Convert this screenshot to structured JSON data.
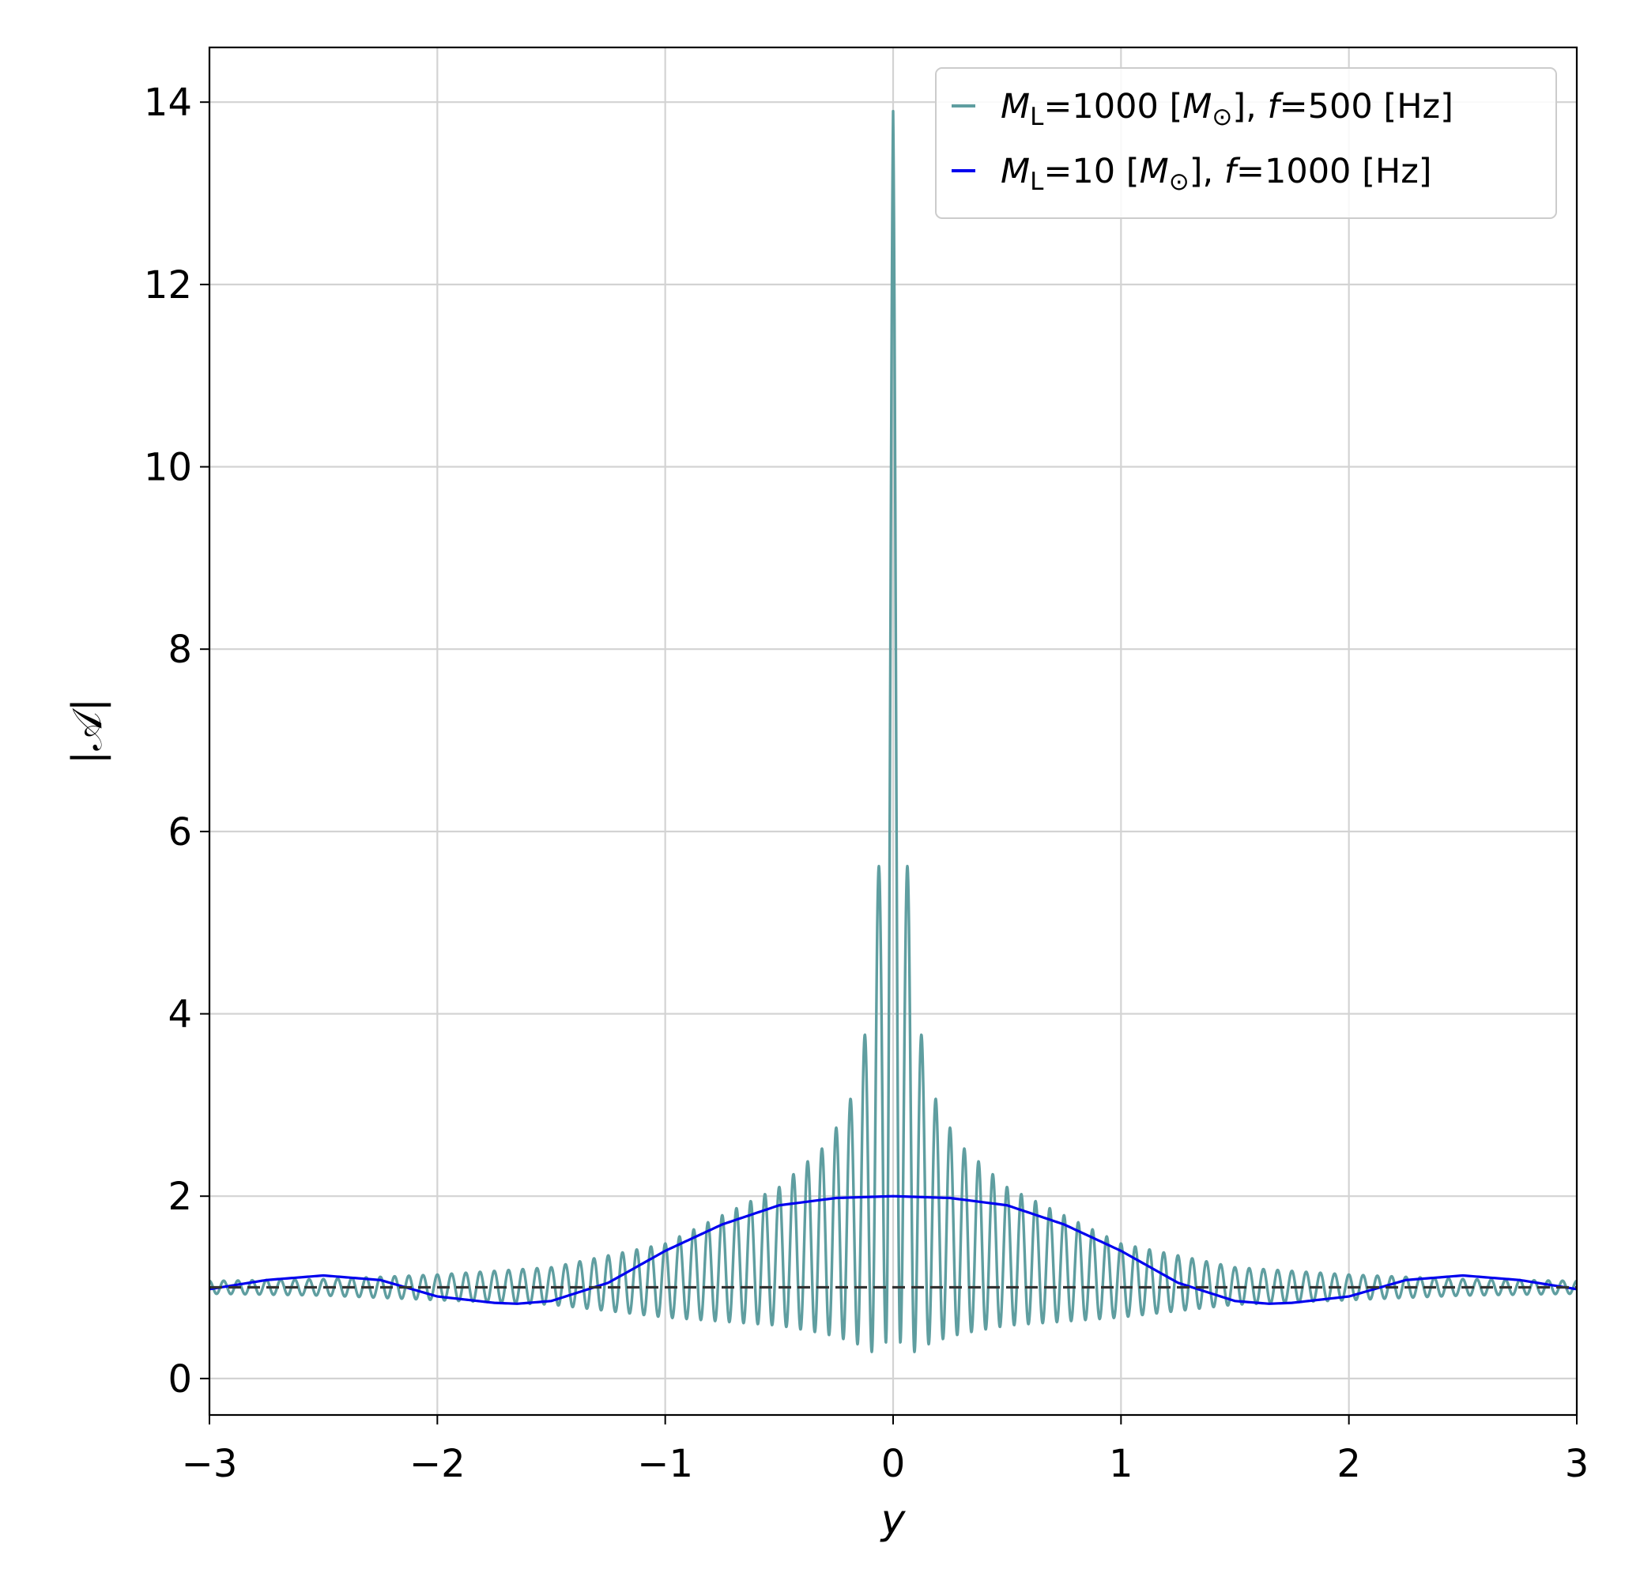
{
  "chart_data": {
    "type": "line",
    "title": "",
    "xlabel": "y",
    "ylabel": "|𝒜|",
    "xlim": [
      -3,
      3
    ],
    "ylim": [
      -0.4,
      14.6
    ],
    "xticks": [
      -3,
      -2,
      -1,
      0,
      1,
      2,
      3
    ],
    "xtick_labels": [
      "−3",
      "−2",
      "−1",
      "0",
      "1",
      "2",
      "3"
    ],
    "yticks": [
      0,
      2,
      4,
      6,
      8,
      10,
      12,
      14
    ],
    "ytick_labels": [
      "0",
      "2",
      "4",
      "6",
      "8",
      "10",
      "12",
      "14"
    ],
    "grid": true,
    "legend_position": "top-right",
    "series": [
      {
        "name": "M_L=1000 [M_⊙], f=500 [Hz]",
        "legend": {
          "m": "M",
          "sub": "L",
          "mid": "=1000 [",
          "m2": "M",
          "sun": "⊙",
          "close": "], ",
          "f": "f",
          "tail": "=500 [Hz]"
        },
        "color": "#5f9ea0",
        "style": "solid",
        "x": [
          -3,
          -2.5,
          -2,
          -1.5,
          -1,
          -0.5,
          -0.3,
          -0.2,
          -0.14,
          -0.1,
          -0.07,
          -0.04,
          0,
          0.04,
          0.07,
          0.1,
          0.14,
          0.2,
          0.3,
          0.5,
          1,
          1.5,
          2,
          2.5,
          3
        ],
        "peak_envelope": [
          1.07,
          1.09,
          1.14,
          1.22,
          1.48,
          2.1,
          2.55,
          2.95,
          3.5,
          4.2,
          5.62,
          5.62,
          13.9,
          5.62,
          5.62,
          4.2,
          3.5,
          2.95,
          2.55,
          2.1,
          1.48,
          1.22,
          1.14,
          1.09,
          1.07
        ],
        "trough_envelope": [
          0.93,
          0.91,
          0.86,
          0.81,
          0.67,
          0.58,
          0.49,
          0.42,
          0.36,
          0.3,
          0.26,
          0.26,
          0.88,
          0.26,
          0.26,
          0.3,
          0.36,
          0.42,
          0.49,
          0.58,
          0.67,
          0.81,
          0.86,
          0.91,
          0.93
        ]
      },
      {
        "name": "M_L=10 [M_⊙], f=1000 [Hz]",
        "legend": {
          "m": "M",
          "sub": "L",
          "mid": "=10 [",
          "m2": "M",
          "sun": "⊙",
          "close": "], ",
          "f": "f",
          "tail": "=1000 [Hz]"
        },
        "color": "#0000ee",
        "style": "solid",
        "x": [
          -3,
          -2.75,
          -2.5,
          -2.25,
          -2,
          -1.75,
          -1.65,
          -1.5,
          -1.25,
          -1,
          -0.75,
          -0.5,
          -0.25,
          0,
          0.25,
          0.5,
          0.75,
          1,
          1.25,
          1.5,
          1.65,
          1.75,
          2,
          2.25,
          2.5,
          2.75,
          3
        ],
        "y": [
          0.98,
          1.08,
          1.13,
          1.08,
          0.9,
          0.83,
          0.82,
          0.85,
          1.05,
          1.4,
          1.69,
          1.9,
          1.98,
          2.0,
          1.98,
          1.9,
          1.69,
          1.4,
          1.05,
          0.85,
          0.82,
          0.83,
          0.9,
          1.08,
          1.13,
          1.08,
          0.98
        ]
      },
      {
        "name": "",
        "color": "#333333",
        "style": "dashed",
        "x": [
          -3,
          3
        ],
        "y": [
          1,
          1
        ]
      }
    ]
  }
}
